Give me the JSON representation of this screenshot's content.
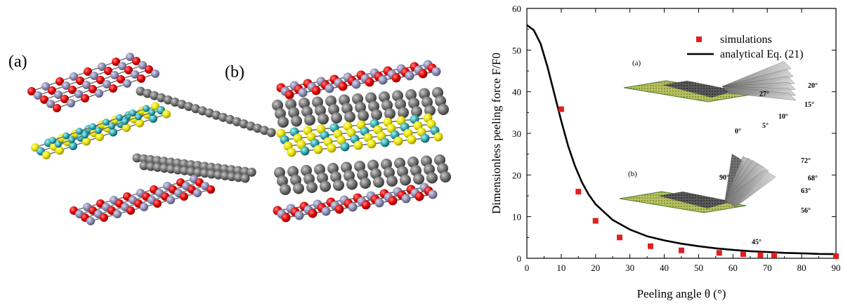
{
  "panels": {
    "left_a_label": "(a)",
    "left_b_label": "(b)"
  },
  "chart_data": {
    "type": "scatter",
    "title": "",
    "xlabel": "Peeling angle θ (°)",
    "ylabel": "Dimensionless peeling force F/F0",
    "xlim": [
      0,
      90
    ],
    "ylim": [
      0,
      60
    ],
    "xticks": [
      0,
      10,
      20,
      30,
      40,
      50,
      60,
      70,
      80,
      90
    ],
    "yticks": [
      0,
      10,
      20,
      30,
      40,
      50,
      60
    ],
    "grid": false,
    "legend_position": "top-right",
    "series": [
      {
        "name": "simulations",
        "kind": "scatter",
        "marker": "square",
        "color": "#e02020",
        "x": [
          10,
          15,
          20,
          27,
          36,
          45,
          56,
          63,
          68,
          72,
          90
        ],
        "y": [
          35.8,
          16.0,
          9.0,
          5.0,
          2.9,
          1.9,
          1.3,
          1.0,
          0.8,
          0.7,
          0.5
        ]
      },
      {
        "name": "analytical Eq. (21)",
        "kind": "line",
        "color": "#000000",
        "x": [
          0,
          2,
          4,
          6,
          8,
          10,
          12,
          14,
          16,
          18,
          20,
          25,
          30,
          35,
          40,
          45,
          50,
          55,
          60,
          65,
          70,
          75,
          80,
          85,
          90
        ],
        "y": [
          56.0,
          54.8,
          51.5,
          46.0,
          39.5,
          33.0,
          27.0,
          22.2,
          18.3,
          15.3,
          13.0,
          9.2,
          6.9,
          5.3,
          4.3,
          3.5,
          2.9,
          2.4,
          2.0,
          1.7,
          1.5,
          1.3,
          1.2,
          1.05,
          1.0
        ]
      }
    ],
    "insets": [
      {
        "label": "(a)",
        "angles": [
          "27°",
          "20°",
          "15°",
          "10°",
          "5°",
          "0°"
        ]
      },
      {
        "label": "(b)",
        "angles": [
          "72°",
          "68°",
          "63°",
          "90°",
          "56°",
          "45°"
        ]
      }
    ]
  }
}
